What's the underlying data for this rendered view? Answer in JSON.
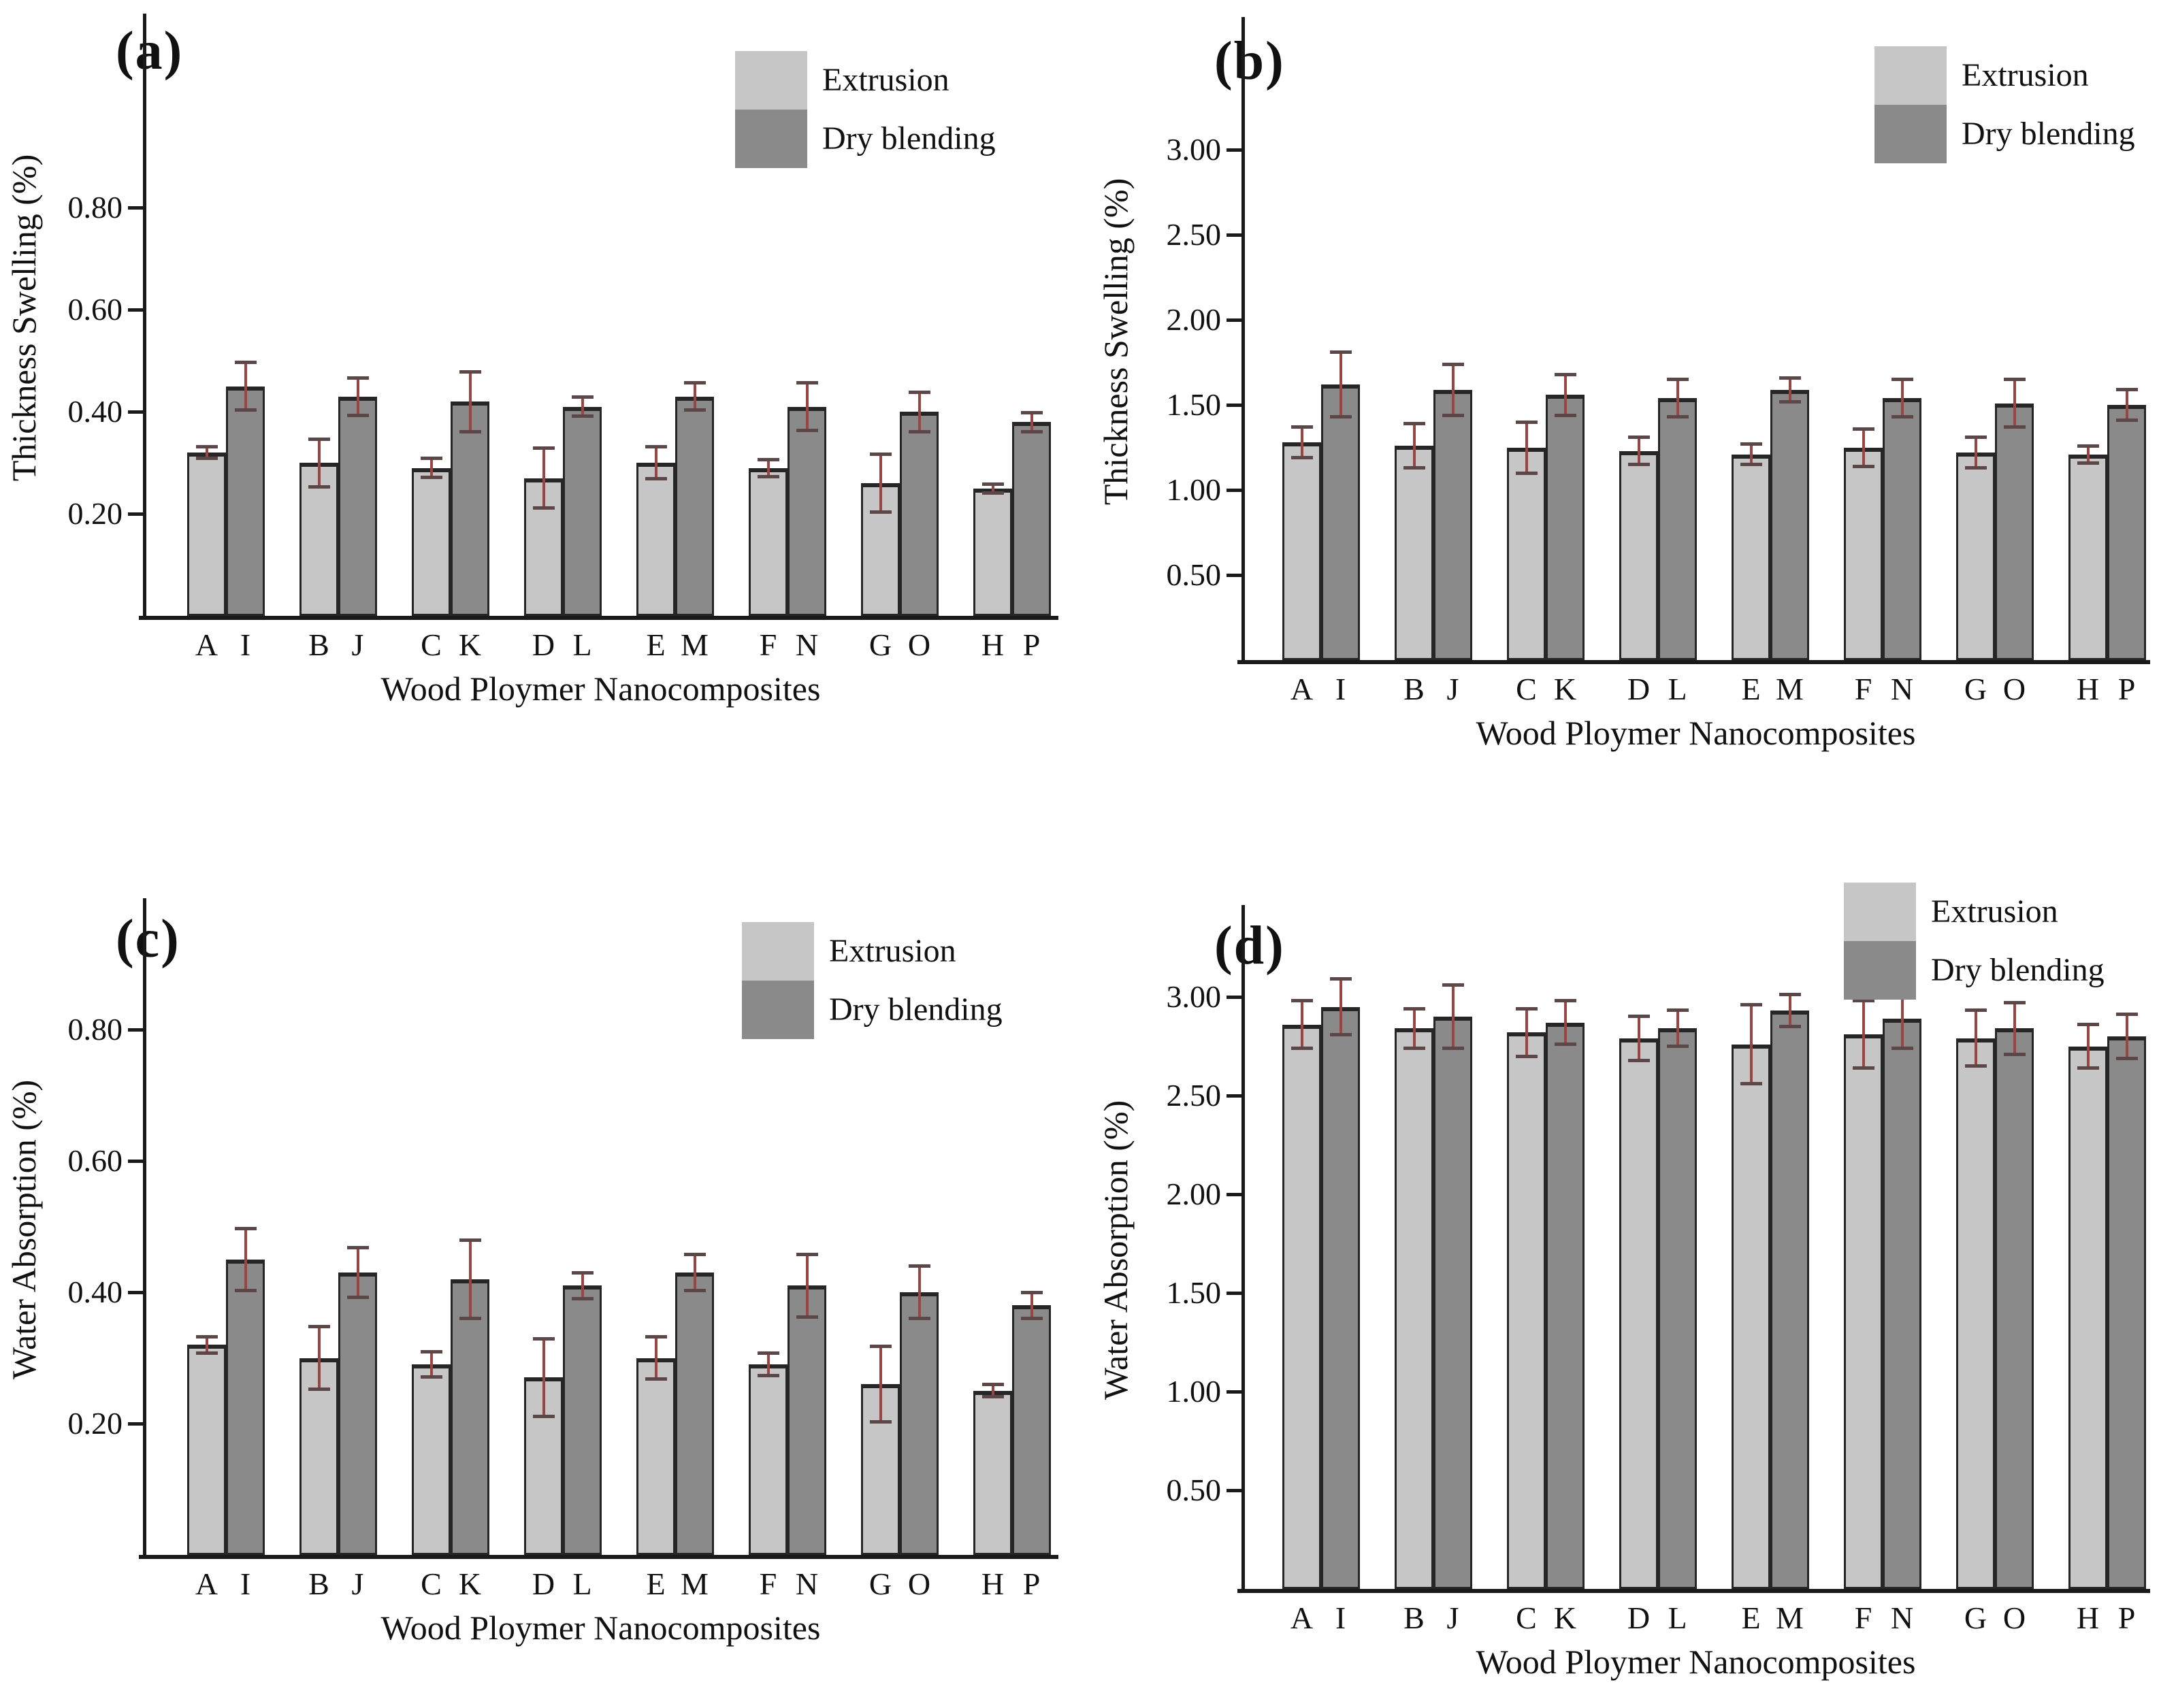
{
  "figure": {
    "title": "",
    "series_names": [
      "Extrusion",
      "Dry blending"
    ],
    "colors": {
      "extrusion_fill": "#c6c6c6",
      "dry_blending_fill": "#8a8a8a",
      "bar_border": "#262626",
      "error_bar_line": "#9a4444",
      "error_bar_cap": "#5d4646",
      "axis": "#1a1a1a",
      "text": "#111111",
      "background": "#ffffff"
    }
  },
  "chart_data": [
    {
      "type": "bar",
      "panel_label": "(a)",
      "title": "",
      "ylabel": "Thickness Swelling (%)",
      "xlabel": "Wood Ploymer Nanocomposites",
      "ylim": [
        0,
        1.18
      ],
      "yticks": [
        0.2,
        0.4,
        0.6,
        0.8
      ],
      "ytick_labels": [
        "0.20",
        "0.40",
        "0.60",
        "0.80"
      ],
      "grid": false,
      "legend_position": "top-right",
      "categories": [
        "A",
        "B",
        "C",
        "D",
        "E",
        "F",
        "G",
        "H"
      ],
      "categories2": [
        "I",
        "J",
        "K",
        "L",
        "M",
        "N",
        "O",
        "P"
      ],
      "series": [
        {
          "name": "Extrusion",
          "values": [
            0.32,
            0.3,
            0.29,
            0.27,
            0.3,
            0.29,
            0.26,
            0.25
          ],
          "errors": [
            0.015,
            0.05,
            0.022,
            0.062,
            0.035,
            0.02,
            0.06,
            0.012
          ]
        },
        {
          "name": "Dry blending",
          "values": [
            0.45,
            0.43,
            0.42,
            0.41,
            0.43,
            0.41,
            0.4,
            0.38
          ],
          "errors": [
            0.05,
            0.04,
            0.062,
            0.022,
            0.03,
            0.05,
            0.042,
            0.022
          ]
        }
      ]
    },
    {
      "type": "bar",
      "panel_label": "(b)",
      "title": "",
      "ylabel": "Thickness Swelling (%)",
      "xlabel": "Wood Ploymer Nanocomposites",
      "ylim": [
        0,
        3.66
      ],
      "yticks": [
        0.5,
        1.0,
        1.5,
        2.0,
        2.5,
        3.0
      ],
      "ytick_labels": [
        "0.50",
        "1.00",
        "1.50",
        "2.00",
        "2.50",
        "3.00"
      ],
      "grid": false,
      "legend_position": "top-right",
      "categories": [
        "A",
        "B",
        "C",
        "D",
        "E",
        "F",
        "G",
        "H"
      ],
      "categories2": [
        "I",
        "J",
        "K",
        "L",
        "M",
        "N",
        "O",
        "P"
      ],
      "series": [
        {
          "name": "Extrusion",
          "values": [
            1.28,
            1.26,
            1.25,
            1.23,
            1.21,
            1.25,
            1.22,
            1.21
          ],
          "errors": [
            0.1,
            0.14,
            0.16,
            0.09,
            0.07,
            0.12,
            0.1,
            0.06
          ]
        },
        {
          "name": "Dry blending",
          "values": [
            1.62,
            1.59,
            1.56,
            1.54,
            1.59,
            1.54,
            1.51,
            1.5
          ],
          "errors": [
            0.2,
            0.16,
            0.13,
            0.12,
            0.08,
            0.12,
            0.15,
            0.1
          ]
        }
      ]
    },
    {
      "type": "bar",
      "panel_label": "(c)",
      "title": "",
      "ylabel": "Water Absorption (%)",
      "xlabel": "Wood Ploymer Nanocomposites",
      "ylim": [
        0,
        1.0
      ],
      "yticks": [
        0.2,
        0.4,
        0.6,
        0.8
      ],
      "ytick_labels": [
        "0.20",
        "0.40",
        "0.60",
        "0.80"
      ],
      "grid": false,
      "legend_position": "top-right",
      "categories": [
        "A",
        "B",
        "C",
        "D",
        "E",
        "F",
        "G",
        "H"
      ],
      "categories2": [
        "I",
        "J",
        "K",
        "L",
        "M",
        "N",
        "O",
        "P"
      ],
      "series": [
        {
          "name": "Extrusion",
          "values": [
            0.32,
            0.3,
            0.29,
            0.27,
            0.3,
            0.29,
            0.26,
            0.25
          ],
          "errors": [
            0.015,
            0.05,
            0.022,
            0.062,
            0.035,
            0.02,
            0.06,
            0.012
          ]
        },
        {
          "name": "Dry blending",
          "values": [
            0.45,
            0.43,
            0.42,
            0.41,
            0.43,
            0.41,
            0.4,
            0.38
          ],
          "errors": [
            0.05,
            0.04,
            0.062,
            0.022,
            0.03,
            0.05,
            0.042,
            0.022
          ]
        }
      ]
    },
    {
      "type": "bar",
      "panel_label": "(d)",
      "title": "",
      "ylabel": "Water Absorption (%)",
      "xlabel": "Wood Ploymer Nanocomposites",
      "ylim": [
        0,
        3.47
      ],
      "yticks": [
        0.5,
        1.0,
        1.5,
        2.0,
        2.5,
        3.0
      ],
      "ytick_labels": [
        "0.50",
        "1.00",
        "1.50",
        "2.00",
        "2.50",
        "3.00"
      ],
      "grid": false,
      "legend_position": "top-right",
      "categories": [
        "A",
        "B",
        "C",
        "D",
        "E",
        "F",
        "G",
        "H"
      ],
      "categories2": [
        "I",
        "J",
        "K",
        "L",
        "M",
        "N",
        "O",
        "P"
      ],
      "series": [
        {
          "name": "Extrusion",
          "values": [
            2.86,
            2.84,
            2.82,
            2.79,
            2.76,
            2.81,
            2.79,
            2.75
          ],
          "errors": [
            0.13,
            0.11,
            0.13,
            0.12,
            0.21,
            0.18,
            0.15,
            0.12
          ]
        },
        {
          "name": "Dry blending",
          "values": [
            2.95,
            2.9,
            2.87,
            2.84,
            2.93,
            2.89,
            2.84,
            2.8
          ],
          "errors": [
            0.15,
            0.17,
            0.12,
            0.1,
            0.09,
            0.16,
            0.14,
            0.12
          ]
        }
      ]
    }
  ]
}
